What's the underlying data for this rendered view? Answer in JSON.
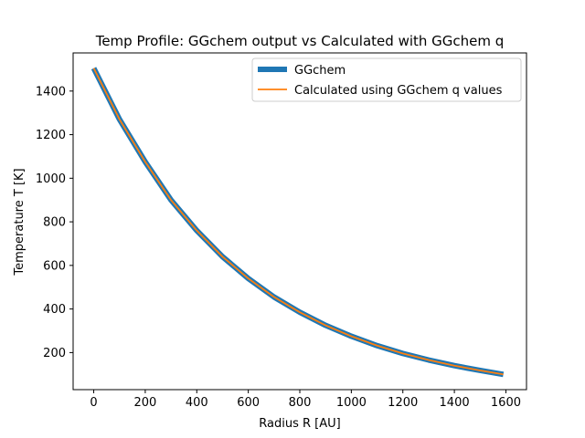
{
  "chart_data": {
    "type": "line",
    "title": "Temp Profile: GGchem output vs Calculated with GGchem q",
    "xlabel": "Radius R [AU]",
    "ylabel": "Temperature T [K]",
    "xlim": [
      -80,
      1680
    ],
    "ylim": [
      30,
      1575
    ],
    "xticks": [
      0,
      200,
      400,
      600,
      800,
      1000,
      1200,
      1400,
      1600
    ],
    "yticks": [
      200,
      400,
      600,
      800,
      1000,
      1200,
      1400
    ],
    "grid": false,
    "legend_position": "top-right",
    "series": [
      {
        "name": "GGchem",
        "color": "#1f77b4",
        "x": [
          0,
          100,
          200,
          300,
          400,
          500,
          600,
          700,
          800,
          900,
          1000,
          1100,
          1200,
          1300,
          1400,
          1500,
          1590
        ],
        "y": [
          1505,
          1270,
          1075,
          900,
          760,
          640,
          540,
          455,
          385,
          325,
          275,
          232,
          196,
          166,
          140,
          118,
          100
        ]
      },
      {
        "name": "Calculated using GGchem q values",
        "color": "#ff7f0e",
        "x": [
          0,
          100,
          200,
          300,
          400,
          500,
          600,
          700,
          800,
          900,
          1000,
          1100,
          1200,
          1300,
          1400,
          1500,
          1590
        ],
        "y": [
          1505,
          1270,
          1075,
          900,
          760,
          640,
          540,
          455,
          385,
          325,
          275,
          232,
          196,
          166,
          140,
          118,
          100
        ]
      }
    ]
  }
}
